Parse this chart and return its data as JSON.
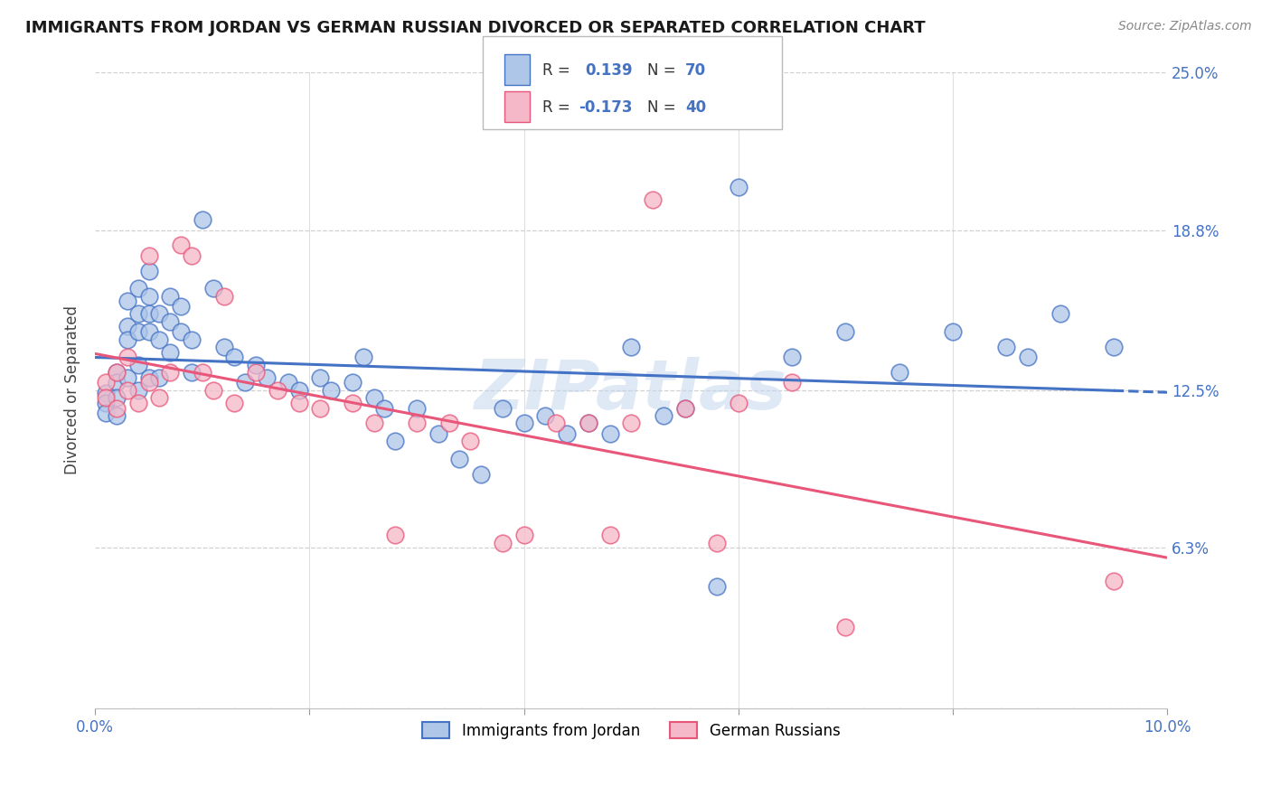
{
  "title": "IMMIGRANTS FROM JORDAN VS GERMAN RUSSIAN DIVORCED OR SEPARATED CORRELATION CHART",
  "source": "Source: ZipAtlas.com",
  "ylabel": "Divorced or Separated",
  "xmin": 0.0,
  "xmax": 0.1,
  "ymin": 0.0,
  "ymax": 0.25,
  "yticks": [
    0.0,
    0.063,
    0.125,
    0.188,
    0.25
  ],
  "ytick_labels": [
    "",
    "6.3%",
    "12.5%",
    "18.8%",
    "25.0%"
  ],
  "xticks": [
    0.0,
    0.02,
    0.04,
    0.06,
    0.08,
    0.1
  ],
  "xtick_labels": [
    "0.0%",
    "",
    "",
    "",
    "",
    "10.0%"
  ],
  "blue_R": 0.139,
  "blue_N": 70,
  "pink_R": -0.173,
  "pink_N": 40,
  "blue_color": "#aec6e8",
  "pink_color": "#f5b8c8",
  "blue_line_color": "#4472c4",
  "pink_line_color": "#e8567a",
  "axis_color": "#4472c4",
  "watermark": "ZIPatlas",
  "blue_scatter_x": [
    0.001,
    0.001,
    0.001,
    0.002,
    0.002,
    0.002,
    0.002,
    0.003,
    0.003,
    0.003,
    0.003,
    0.004,
    0.004,
    0.004,
    0.004,
    0.004,
    0.005,
    0.005,
    0.005,
    0.005,
    0.005,
    0.006,
    0.006,
    0.006,
    0.007,
    0.007,
    0.007,
    0.008,
    0.008,
    0.009,
    0.009,
    0.01,
    0.011,
    0.012,
    0.013,
    0.014,
    0.015,
    0.016,
    0.018,
    0.019,
    0.021,
    0.022,
    0.024,
    0.025,
    0.026,
    0.027,
    0.028,
    0.03,
    0.032,
    0.034,
    0.036,
    0.038,
    0.04,
    0.042,
    0.044,
    0.046,
    0.048,
    0.05,
    0.053,
    0.055,
    0.058,
    0.06,
    0.065,
    0.07,
    0.075,
    0.08,
    0.085,
    0.087,
    0.09,
    0.095
  ],
  "blue_scatter_y": [
    0.124,
    0.12,
    0.116,
    0.132,
    0.128,
    0.122,
    0.115,
    0.15,
    0.16,
    0.145,
    0.13,
    0.165,
    0.155,
    0.148,
    0.135,
    0.125,
    0.172,
    0.162,
    0.155,
    0.148,
    0.13,
    0.155,
    0.145,
    0.13,
    0.162,
    0.152,
    0.14,
    0.158,
    0.148,
    0.145,
    0.132,
    0.192,
    0.165,
    0.142,
    0.138,
    0.128,
    0.135,
    0.13,
    0.128,
    0.125,
    0.13,
    0.125,
    0.128,
    0.138,
    0.122,
    0.118,
    0.105,
    0.118,
    0.108,
    0.098,
    0.092,
    0.118,
    0.112,
    0.115,
    0.108,
    0.112,
    0.108,
    0.142,
    0.115,
    0.118,
    0.048,
    0.205,
    0.138,
    0.148,
    0.132,
    0.148,
    0.142,
    0.138,
    0.155,
    0.142
  ],
  "pink_scatter_x": [
    0.001,
    0.001,
    0.002,
    0.002,
    0.003,
    0.003,
    0.004,
    0.005,
    0.005,
    0.006,
    0.007,
    0.008,
    0.009,
    0.01,
    0.011,
    0.012,
    0.013,
    0.015,
    0.017,
    0.019,
    0.021,
    0.024,
    0.026,
    0.028,
    0.03,
    0.033,
    0.035,
    0.038,
    0.04,
    0.043,
    0.046,
    0.048,
    0.05,
    0.052,
    0.055,
    0.058,
    0.06,
    0.065,
    0.07,
    0.095
  ],
  "pink_scatter_y": [
    0.128,
    0.122,
    0.132,
    0.118,
    0.138,
    0.125,
    0.12,
    0.178,
    0.128,
    0.122,
    0.132,
    0.182,
    0.178,
    0.132,
    0.125,
    0.162,
    0.12,
    0.132,
    0.125,
    0.12,
    0.118,
    0.12,
    0.112,
    0.068,
    0.112,
    0.112,
    0.105,
    0.065,
    0.068,
    0.112,
    0.112,
    0.068,
    0.112,
    0.2,
    0.118,
    0.065,
    0.12,
    0.128,
    0.032,
    0.05
  ]
}
